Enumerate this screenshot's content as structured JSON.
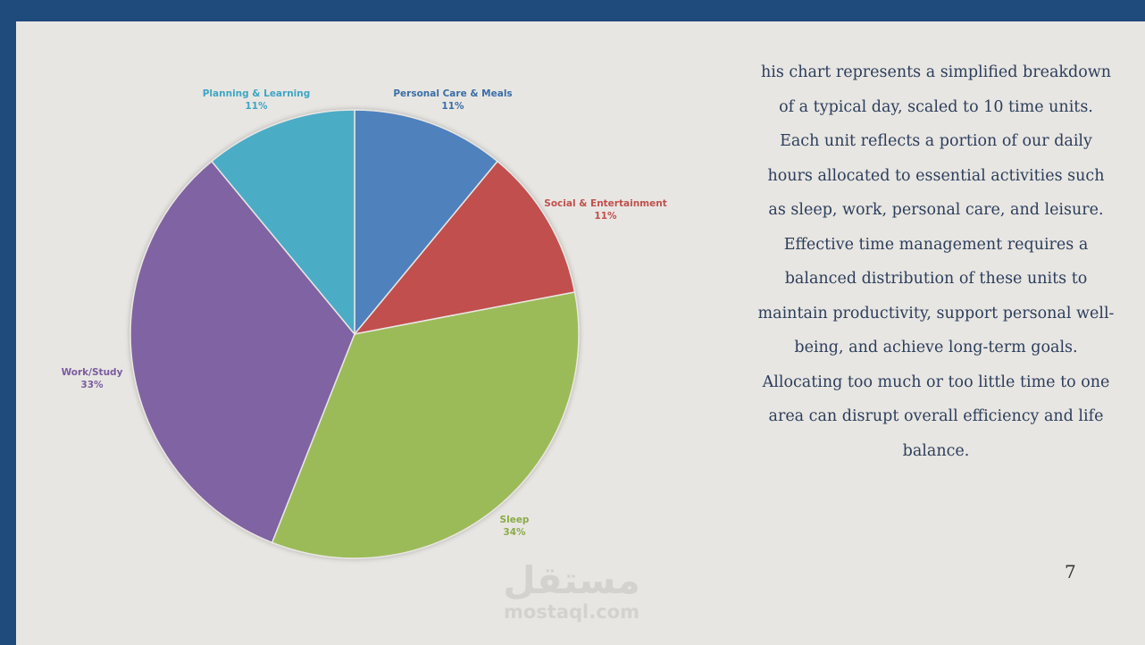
{
  "slide": {
    "description_paragraphs": [
      "his chart represents a simplified breakdown of a typical day, scaled to 10 time units. Each unit reflects a portion of our daily hours allocated to essential activities such as sleep, work, personal care, and leisure.",
      "Effective time management requires a balanced distribution of these units to maintain productivity, support personal well-being, and achieve long-term goals. Allocating too much or too little time to one area can disrupt overall efficiency and life balance."
    ],
    "page_number": "7",
    "watermark": {
      "arabic": "مستقل",
      "latin": "mostaql.com"
    }
  },
  "colors": {
    "frame": "#1f4a7c",
    "background": "#e8e6e2",
    "text": "#2c3e5c"
  },
  "chart_data": {
    "type": "pie",
    "start_angle_deg": 0,
    "direction": "clockwise",
    "slices": [
      {
        "label": "Personal Care & Meals",
        "value": 11,
        "pct_label": "11%",
        "color": "#4f81bd",
        "label_color": "#3a6ea8"
      },
      {
        "label": "Social & Entertainment",
        "value": 11,
        "pct_label": "11%",
        "color": "#c0504d",
        "label_color": "#c0504d"
      },
      {
        "label": "Sleep",
        "value": 34,
        "pct_label": "34%",
        "color": "#9bbb59",
        "label_color": "#8aab48"
      },
      {
        "label": "Work/Study",
        "value": 33,
        "pct_label": "33%",
        "color": "#8064a2",
        "label_color": "#7a5c9e"
      },
      {
        "label": "Planning & Learning",
        "value": 11,
        "pct_label": "11%",
        "color": "#4bacc6",
        "label_color": "#3ea6c4"
      }
    ]
  }
}
